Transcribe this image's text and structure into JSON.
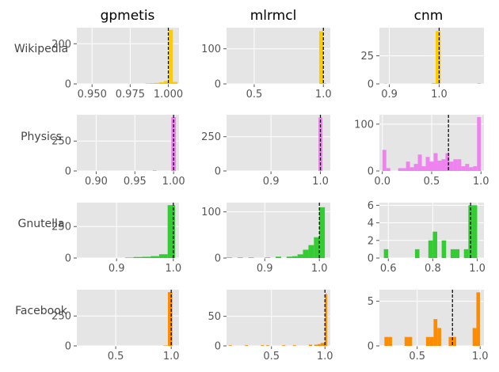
{
  "chart_data": {
    "type": "histogram-grid",
    "column_titles": [
      "gpmetis",
      "mlrmcl",
      "cnm"
    ],
    "row_labels": [
      "Wikipedia",
      "Physics",
      "Gnutella",
      "Facebook"
    ],
    "row_colors": [
      "#FFCC00",
      "#EE82EE",
      "#33CC33",
      "#FF8C00"
    ],
    "background": "#E5E5E5",
    "grid": true,
    "reference_line": "dashed black vertical line per panel",
    "panels": [
      [
        {
          "xlim": [
            0.94,
            1.007
          ],
          "ylim": [
            0,
            280
          ],
          "xticks": [
            0.95,
            0.975,
            1.0
          ],
          "xtick_labels": [
            "0.950",
            "0.975",
            "1.000"
          ],
          "yticks": [
            0,
            200
          ],
          "ytick_labels": [
            "0",
            "200"
          ],
          "line_x": 1.0,
          "bins": [
            [
              0.985,
              0.988,
              2
            ],
            [
              0.988,
              0.991,
              3
            ],
            [
              0.991,
              0.994,
              5
            ],
            [
              0.994,
              0.997,
              8
            ],
            [
              0.997,
              1.0,
              14
            ],
            [
              1.0,
              1.003,
              270
            ],
            [
              1.003,
              1.006,
              10
            ]
          ]
        },
        {
          "xlim": [
            0.3,
            1.05
          ],
          "ylim": [
            0,
            160
          ],
          "xticks": [
            0.5,
            1.0
          ],
          "xtick_labels": [
            "0.5",
            "1.0"
          ],
          "yticks": [
            0,
            100
          ],
          "ytick_labels": [
            "0",
            "100"
          ],
          "line_x": 1.0,
          "bins": [
            [
              0.97,
              1.0,
              150
            ],
            [
              1.0,
              1.02,
              2
            ]
          ]
        },
        {
          "xlim": [
            0.88,
            1.09
          ],
          "ylim": [
            0,
            50
          ],
          "xticks": [
            0.9,
            1.0
          ],
          "xtick_labels": [
            "0.9",
            "1.0"
          ],
          "yticks": [
            0,
            25
          ],
          "ytick_labels": [
            "0",
            "25"
          ],
          "line_x": 1.0,
          "bins": [
            [
              0.89,
              0.895,
              0.4
            ],
            [
              0.985,
              0.993,
              0.8
            ],
            [
              0.993,
              1.003,
              47
            ],
            [
              1.077,
              1.084,
              0.6
            ]
          ]
        }
      ],
      [
        {
          "xlim": [
            0.875,
            1.007
          ],
          "ylim": [
            0,
            470
          ],
          "xticks": [
            0.9,
            0.95,
            1.0
          ],
          "xtick_labels": [
            "0.90",
            "0.95",
            "1.00"
          ],
          "yticks": [
            0,
            250
          ],
          "ytick_labels": [
            "0",
            "250"
          ],
          "line_x": 1.0,
          "bins": [
            [
              0.973,
              0.978,
              4
            ],
            [
              0.997,
              1.003,
              450
            ]
          ]
        },
        {
          "xlim": [
            0.81,
            1.02
          ],
          "ylim": [
            0,
            410
          ],
          "xticks": [
            0.9,
            1.0
          ],
          "xtick_labels": [
            "0.9",
            "1.0"
          ],
          "yticks": [
            0,
            250
          ],
          "ytick_labels": [
            "0",
            "250"
          ],
          "line_x": 1.0,
          "bins": [
            [
              0.996,
              1.004,
              390
            ]
          ]
        },
        {
          "xlim": [
            -0.03,
            1.03
          ],
          "ylim": [
            0,
            120
          ],
          "xticks": [
            0.0,
            0.5,
            1.0
          ],
          "xtick_labels": [
            "0.0",
            "0.5",
            "1.0"
          ],
          "yticks": [
            0,
            100
          ],
          "ytick_labels": [
            "0",
            "100"
          ],
          "line_x": 0.67,
          "bins": [
            [
              0.0,
              0.04,
              45
            ],
            [
              0.04,
              0.08,
              6
            ],
            [
              0.16,
              0.2,
              6
            ],
            [
              0.2,
              0.24,
              6
            ],
            [
              0.24,
              0.28,
              20
            ],
            [
              0.28,
              0.32,
              8
            ],
            [
              0.32,
              0.36,
              15
            ],
            [
              0.36,
              0.4,
              35
            ],
            [
              0.4,
              0.44,
              10
            ],
            [
              0.44,
              0.48,
              30
            ],
            [
              0.48,
              0.52,
              20
            ],
            [
              0.52,
              0.56,
              38
            ],
            [
              0.56,
              0.6,
              22
            ],
            [
              0.6,
              0.64,
              25
            ],
            [
              0.64,
              0.68,
              38
            ],
            [
              0.68,
              0.72,
              20
            ],
            [
              0.72,
              0.76,
              25
            ],
            [
              0.76,
              0.8,
              25
            ],
            [
              0.8,
              0.84,
              10
            ],
            [
              0.84,
              0.88,
              15
            ],
            [
              0.88,
              0.92,
              8
            ],
            [
              0.92,
              0.96,
              10
            ],
            [
              0.96,
              1.0,
              115
            ]
          ]
        }
      ],
      [
        {
          "xlim": [
            0.83,
            1.01
          ],
          "ylim": [
            0,
            440
          ],
          "xticks": [
            0.9,
            1.0
          ],
          "xtick_labels": [
            "0.9",
            "1.0"
          ],
          "yticks": [
            0,
            250
          ],
          "ytick_labels": [
            "0",
            "250"
          ],
          "line_x": 1.0,
          "bins": [
            [
              0.915,
              0.93,
              3
            ],
            [
              0.93,
              0.945,
              8
            ],
            [
              0.945,
              0.96,
              10
            ],
            [
              0.96,
              0.975,
              15
            ],
            [
              0.975,
              0.99,
              30
            ],
            [
              0.99,
              1.003,
              420
            ]
          ]
        },
        {
          "xlim": [
            0.83,
            1.02
          ],
          "ylim": [
            0,
            120
          ],
          "xticks": [
            0.9,
            1.0
          ],
          "xtick_labels": [
            "0.9",
            "1.0"
          ],
          "yticks": [
            0,
            100
          ],
          "ytick_labels": [
            "0",
            "100"
          ],
          "line_x": 1.0,
          "bins": [
            [
              0.83,
              0.84,
              1
            ],
            [
              0.85,
              0.86,
              1
            ],
            [
              0.87,
              0.88,
              1
            ],
            [
              0.9,
              0.91,
              1
            ],
            [
              0.92,
              0.93,
              3
            ],
            [
              0.94,
              0.95,
              3
            ],
            [
              0.95,
              0.96,
              4
            ],
            [
              0.96,
              0.97,
              8
            ],
            [
              0.97,
              0.98,
              18
            ],
            [
              0.98,
              0.99,
              28
            ],
            [
              0.99,
              1.0,
              45
            ],
            [
              1.0,
              1.01,
              110
            ]
          ]
        },
        {
          "xlim": [
            0.56,
            1.03
          ],
          "ylim": [
            0,
            6.3
          ],
          "xticks": [
            0.6,
            0.8,
            1.0
          ],
          "xtick_labels": [
            "0.6",
            "0.8",
            "1.0"
          ],
          "yticks": [
            0,
            2,
            4,
            6
          ],
          "ytick_labels": [
            "0",
            "2",
            "4",
            "6"
          ],
          "line_x": 0.97,
          "bins": [
            [
              0.58,
              0.6,
              1
            ],
            [
              0.72,
              0.74,
              1
            ],
            [
              0.78,
              0.8,
              2
            ],
            [
              0.8,
              0.82,
              3
            ],
            [
              0.84,
              0.86,
              2
            ],
            [
              0.88,
              0.9,
              1
            ],
            [
              0.9,
              0.92,
              1
            ],
            [
              0.94,
              0.96,
              1
            ],
            [
              0.96,
              0.98,
              6
            ],
            [
              0.98,
              1.0,
              6
            ]
          ]
        }
      ],
      [
        {
          "xlim": [
            0.15,
            1.07
          ],
          "ylim": [
            0,
            470
          ],
          "xticks": [
            0.5,
            1.0
          ],
          "xtick_labels": [
            "0.5",
            "1.0"
          ],
          "yticks": [
            0,
            250
          ],
          "ytick_labels": [
            "0",
            "250"
          ],
          "line_x": 1.0,
          "bins": [
            [
              0.93,
              0.97,
              3
            ],
            [
              0.97,
              1.01,
              450
            ]
          ]
        },
        {
          "xlim": [
            0.08,
            1.05
          ],
          "ylim": [
            0,
            95
          ],
          "xticks": [
            0.5,
            1.0
          ],
          "xtick_labels": [
            "0.5",
            "1.0"
          ],
          "yticks": [
            0,
            50
          ],
          "ytick_labels": [
            "0",
            "50"
          ],
          "line_x": 1.0,
          "bins": [
            [
              0.1,
              0.13,
              1
            ],
            [
              0.25,
              0.28,
              1
            ],
            [
              0.4,
              0.43,
              1
            ],
            [
              0.45,
              0.48,
              1
            ],
            [
              0.6,
              0.63,
              1
            ],
            [
              0.7,
              0.73,
              1
            ],
            [
              0.85,
              0.88,
              2
            ],
            [
              0.9,
              0.93,
              2
            ],
            [
              0.93,
              0.96,
              3
            ],
            [
              0.96,
              1.0,
              5
            ],
            [
              1.0,
              1.02,
              88
            ]
          ]
        },
        {
          "xlim": [
            0.2,
            1.03
          ],
          "ylim": [
            0,
            6.3
          ],
          "xticks": [
            0.5,
            1.0
          ],
          "xtick_labels": [
            "0.5",
            "1.0"
          ],
          "yticks": [
            0,
            5
          ],
          "ytick_labels": [
            "0",
            "5"
          ],
          "line_x": 0.78,
          "bins": [
            [
              0.24,
              0.27,
              1
            ],
            [
              0.27,
              0.3,
              1
            ],
            [
              0.4,
              0.43,
              1
            ],
            [
              0.43,
              0.46,
              1
            ],
            [
              0.57,
              0.6,
              1
            ],
            [
              0.6,
              0.63,
              1
            ],
            [
              0.63,
              0.66,
              3
            ],
            [
              0.66,
              0.69,
              2
            ],
            [
              0.75,
              0.78,
              1
            ],
            [
              0.78,
              0.81,
              1
            ],
            [
              0.94,
              0.97,
              2
            ],
            [
              0.97,
              1.0,
              6
            ]
          ]
        }
      ]
    ]
  }
}
